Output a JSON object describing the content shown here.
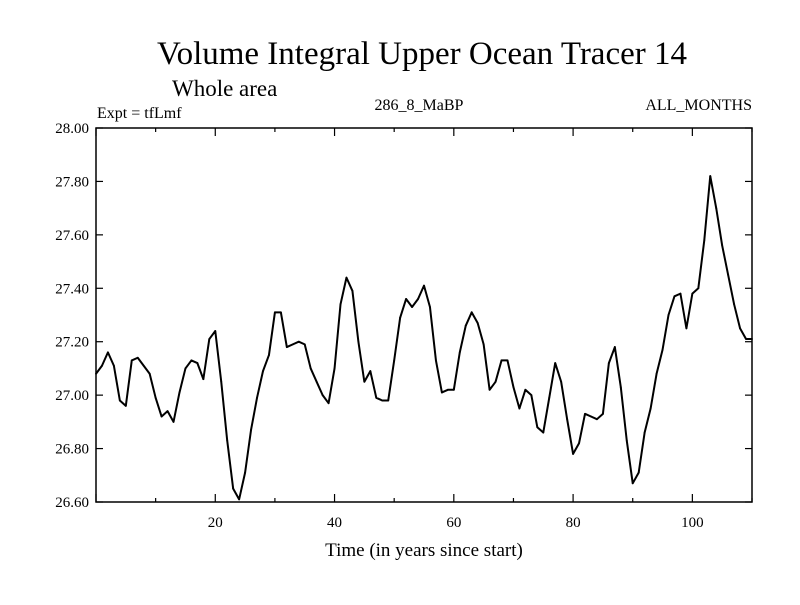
{
  "chart_data": {
    "type": "line",
    "title": "Volume Integral Upper Ocean Tracer 14",
    "subtitle": "Whole area",
    "expt_label": "Expt = tfLmf",
    "run_label": "286_8_MaBP",
    "months_label": "ALL_MONTHS",
    "xlabel": "Time (in years since start)",
    "ylabel": "",
    "xlim": [
      0,
      110
    ],
    "ylim": [
      26.6,
      28.0
    ],
    "xticks": [
      20,
      40,
      60,
      80,
      100
    ],
    "yticks": [
      26.6,
      26.8,
      27.0,
      27.2,
      27.4,
      27.6,
      27.8,
      28.0
    ],
    "xtick_labels": [
      "20",
      "40",
      "60",
      "80",
      "100"
    ],
    "ytick_labels": [
      "26.60",
      "26.80",
      "27.00",
      "27.20",
      "27.40",
      "27.60",
      "27.80",
      "28.00"
    ],
    "series": [
      {
        "name": "Tracer 14",
        "color": "#000000",
        "x": [
          0,
          1,
          2,
          3,
          4,
          5,
          6,
          7,
          8,
          9,
          10,
          11,
          12,
          13,
          14,
          15,
          16,
          17,
          18,
          19,
          20,
          21,
          22,
          23,
          24,
          25,
          26,
          27,
          28,
          29,
          30,
          31,
          32,
          33,
          34,
          35,
          36,
          37,
          38,
          39,
          40,
          41,
          42,
          43,
          44,
          45,
          46,
          47,
          48,
          49,
          50,
          51,
          52,
          53,
          54,
          55,
          56,
          57,
          58,
          59,
          60,
          61,
          62,
          63,
          64,
          65,
          66,
          67,
          68,
          69,
          70,
          71,
          72,
          73,
          74,
          75,
          76,
          77,
          78,
          79,
          80,
          81,
          82,
          83,
          84,
          85,
          86,
          87,
          88,
          89,
          90,
          91,
          92,
          93,
          94,
          95,
          96,
          97,
          98,
          99,
          100,
          101,
          102,
          103,
          104,
          105,
          106,
          107,
          108,
          109,
          110
        ],
        "values": [
          27.08,
          27.11,
          27.16,
          27.11,
          26.98,
          26.96,
          27.13,
          27.14,
          27.11,
          27.08,
          26.99,
          26.92,
          26.94,
          26.9,
          27.01,
          27.1,
          27.13,
          27.12,
          27.06,
          27.21,
          27.24,
          27.05,
          26.83,
          26.65,
          26.61,
          26.71,
          26.87,
          26.99,
          27.09,
          27.15,
          27.31,
          27.31,
          27.18,
          27.19,
          27.2,
          27.19,
          27.1,
          27.05,
          27.0,
          26.97,
          27.1,
          27.34,
          27.44,
          27.39,
          27.2,
          27.05,
          27.09,
          26.99,
          26.98,
          26.98,
          27.13,
          27.29,
          27.36,
          27.33,
          27.36,
          27.41,
          27.33,
          27.13,
          27.01,
          27.02,
          27.02,
          27.16,
          27.26,
          27.31,
          27.27,
          27.19,
          27.02,
          27.05,
          27.13,
          27.13,
          27.03,
          26.95,
          27.02,
          27.0,
          26.88,
          26.86,
          26.99,
          27.12,
          27.05,
          26.91,
          26.78,
          26.82,
          26.93,
          26.92,
          26.91,
          26.93,
          27.12,
          27.18,
          27.03,
          26.83,
          26.67,
          26.71,
          26.86,
          26.95,
          27.08,
          27.17,
          27.3,
          27.37,
          27.38,
          27.25,
          27.38,
          27.4,
          27.58,
          27.82,
          27.7,
          27.56,
          27.45,
          27.34,
          27.25,
          27.21,
          27.21
        ]
      }
    ]
  }
}
